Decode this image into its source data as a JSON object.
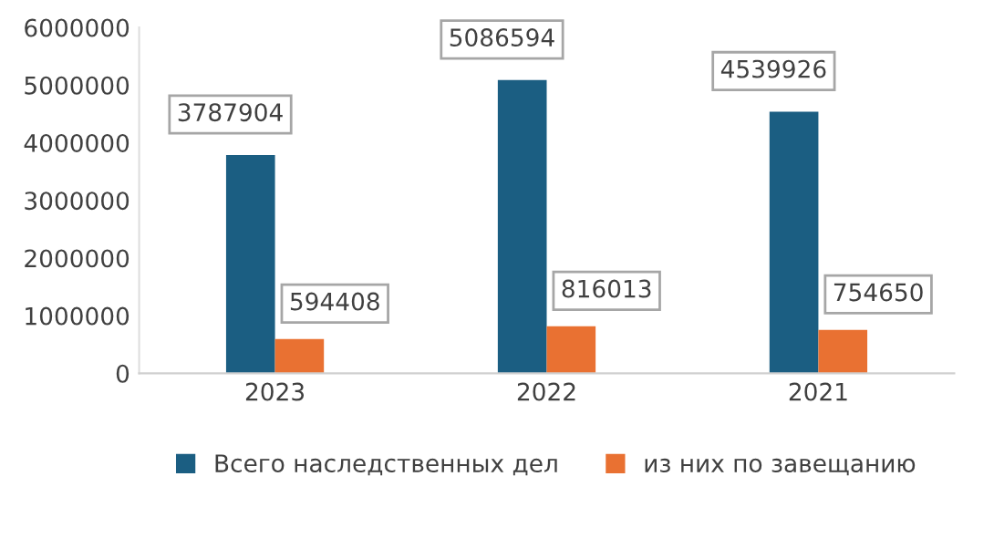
{
  "chart_data": {
    "type": "bar",
    "categories": [
      "2023",
      "2022",
      "2021"
    ],
    "series": [
      {
        "name": "Всего наследственных дел",
        "color": "#1b5e82",
        "values": [
          3787904,
          5086594,
          4539926
        ]
      },
      {
        "name": "из них по завещанию",
        "color": "#e97132",
        "values": [
          594408,
          816013,
          754650
        ]
      }
    ],
    "ylim": [
      0,
      6000000
    ],
    "yticks": [
      0,
      1000000,
      2000000,
      3000000,
      4000000,
      5000000,
      6000000
    ],
    "data_labels": true,
    "grid": false,
    "legend": "bottom"
  }
}
